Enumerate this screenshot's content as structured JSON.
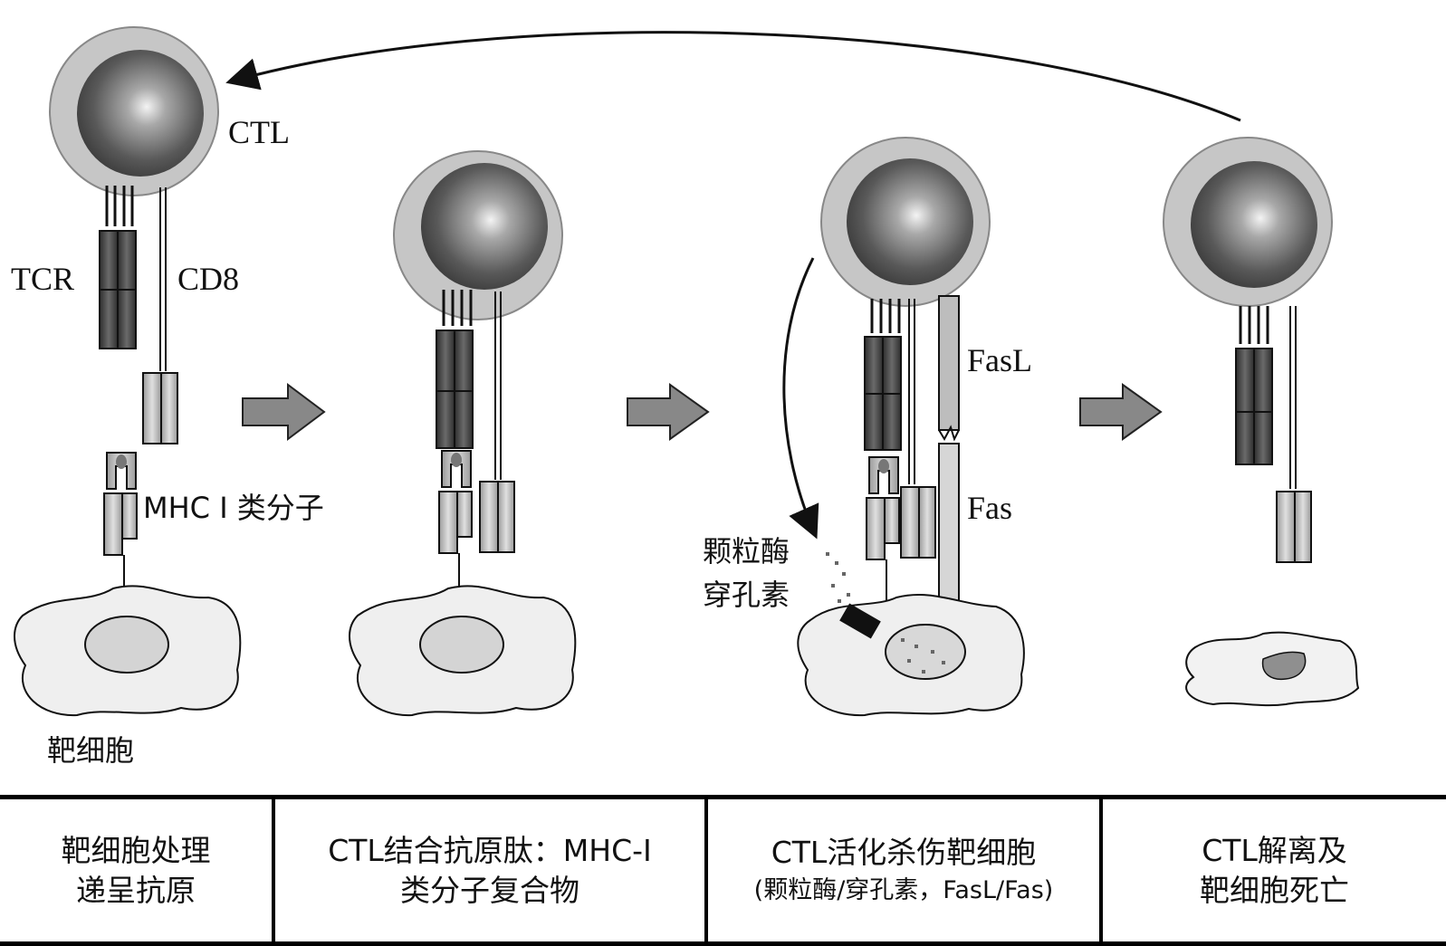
{
  "labels": {
    "ctl": "CTL",
    "tcr": "TCR",
    "cd8": "CD8",
    "mhc": "MHC Ⅰ 类分子",
    "target_cell": "靶细胞",
    "fasl": "FasL",
    "fas": "Fas",
    "granzyme": "颗粒酶",
    "perforin": "穿孔素"
  },
  "steps": [
    {
      "line1": "靶细胞处理",
      "line2": "递呈抗原"
    },
    {
      "line1": "CTL结合抗原肽：MHC-Ⅰ",
      "line2": "类分子复合物"
    },
    {
      "line1": "CTL活化杀伤靶细胞",
      "line2": "(颗粒酶/穿孔素，FasL/Fas)"
    },
    {
      "line1": "CTL解离及",
      "line2": "靶细胞死亡"
    }
  ]
}
